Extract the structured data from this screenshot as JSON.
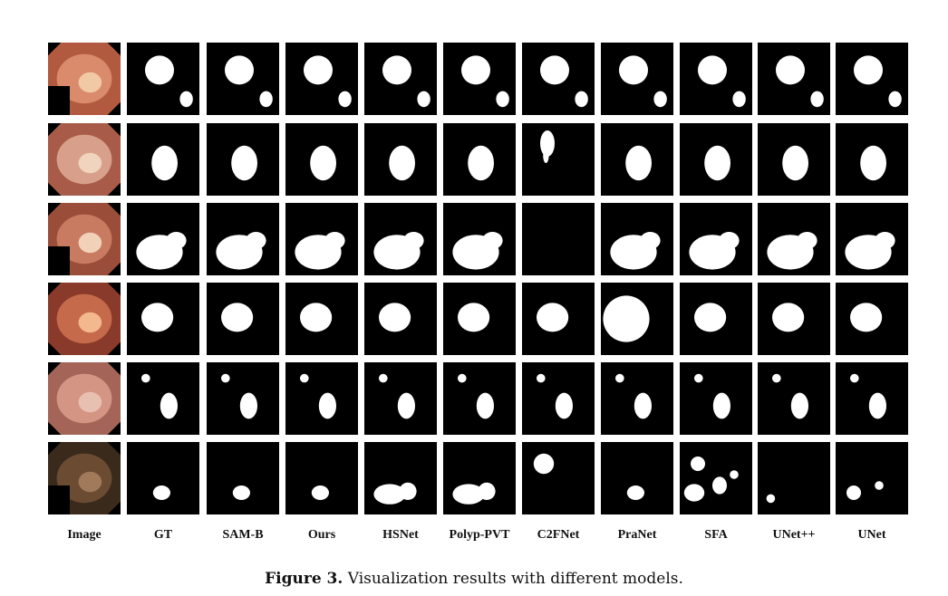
{
  "columns": [
    "Image",
    "GT",
    "SAM-B",
    "Ours",
    "HSNet",
    "Polyp-PVT",
    "C2FNet",
    "PraNet",
    "SFA",
    "UNet++",
    "UNet"
  ],
  "rows": 6,
  "caption": {
    "label": "Figure 3.",
    "text": "Visualization results with different models."
  },
  "colors": {
    "mask_background": "#000000",
    "mask_foreground": "#ffffff"
  }
}
